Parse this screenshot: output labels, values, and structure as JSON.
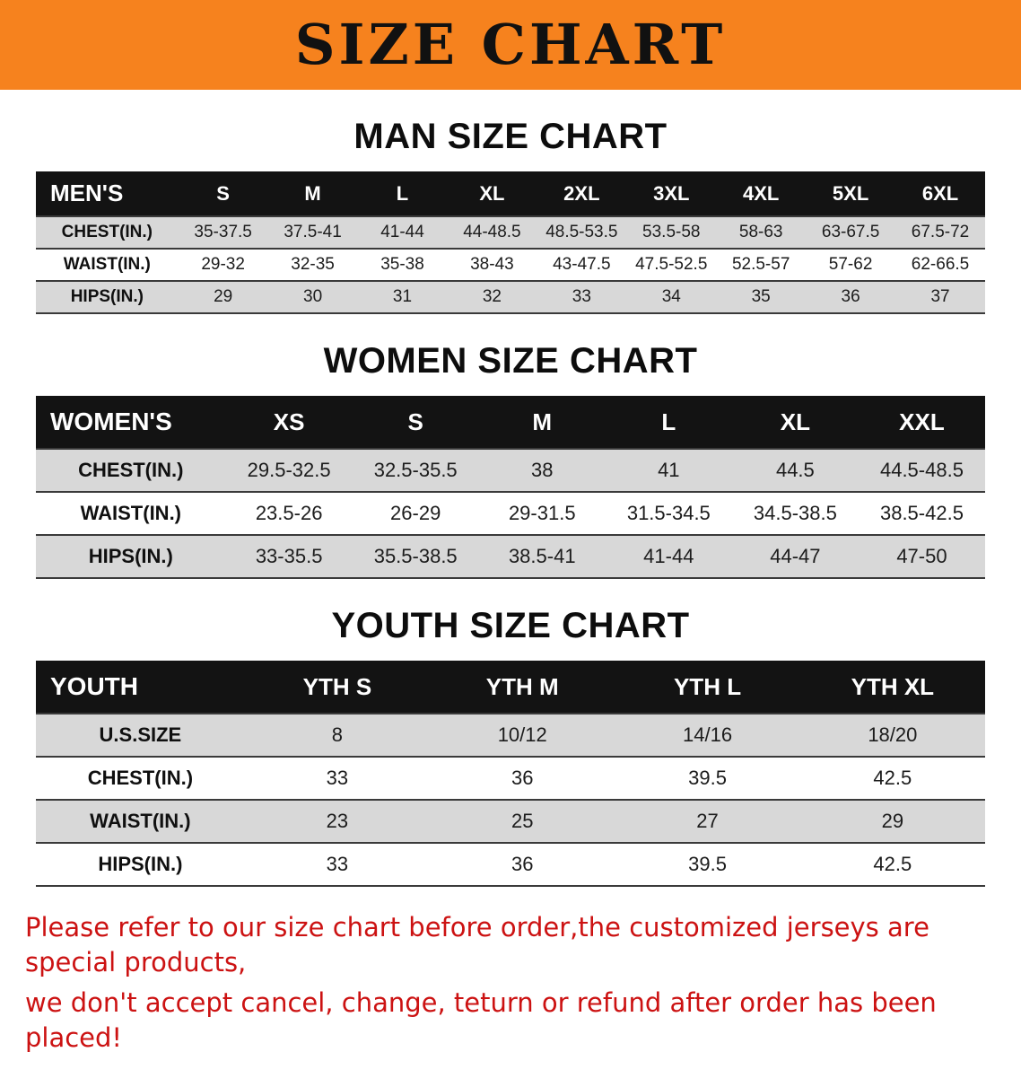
{
  "banner": {
    "title": "SIZE CHART",
    "background_color": "#f6821e"
  },
  "sections": [
    {
      "id": "men",
      "heading": "MAN SIZE CHART",
      "table": {
        "header": [
          "MEN'S",
          "S",
          "M",
          "L",
          "XL",
          "2XL",
          "3XL",
          "4XL",
          "5XL",
          "6XL"
        ],
        "rows": [
          [
            "CHEST(IN.)",
            "35-37.5",
            "37.5-41",
            "41-44",
            "44-48.5",
            "48.5-53.5",
            "53.5-58",
            "58-63",
            "63-67.5",
            "67.5-72"
          ],
          [
            "WAIST(IN.)",
            "29-32",
            "32-35",
            "35-38",
            "38-43",
            "43-47.5",
            "47.5-52.5",
            "52.5-57",
            "57-62",
            "62-66.5"
          ],
          [
            "HIPS(IN.)",
            "29",
            "30",
            "31",
            "32",
            "33",
            "34",
            "35",
            "36",
            "37"
          ]
        ]
      }
    },
    {
      "id": "women",
      "heading": "WOMEN SIZE CHART",
      "table": {
        "header": [
          "WOMEN'S",
          "XS",
          "S",
          "M",
          "L",
          "XL",
          "XXL"
        ],
        "rows": [
          [
            "CHEST(IN.)",
            "29.5-32.5",
            "32.5-35.5",
            "38",
            "41",
            "44.5",
            "44.5-48.5"
          ],
          [
            "WAIST(IN.)",
            "23.5-26",
            "26-29",
            "29-31.5",
            "31.5-34.5",
            "34.5-38.5",
            "38.5-42.5"
          ],
          [
            "HIPS(IN.)",
            "33-35.5",
            "35.5-38.5",
            "38.5-41",
            "41-44",
            "44-47",
            "47-50"
          ]
        ]
      }
    },
    {
      "id": "youth",
      "heading": "YOUTH SIZE CHART",
      "table": {
        "header": [
          "YOUTH",
          "YTH S",
          "YTH M",
          "YTH L",
          "YTH XL"
        ],
        "rows": [
          [
            "U.S.SIZE",
            "8",
            "10/12",
            "14/16",
            "18/20"
          ],
          [
            "CHEST(IN.)",
            "33",
            "36",
            "39.5",
            "42.5"
          ],
          [
            "WAIST(IN.)",
            "23",
            "25",
            "27",
            "29"
          ],
          [
            "HIPS(IN.)",
            "33",
            "36",
            "39.5",
            "42.5"
          ]
        ]
      }
    }
  ],
  "footer_note": {
    "line1": "Please refer to our size chart before order,the customized jerseys are special products,",
    "line2": "we don't accept cancel, change, teturn or refund after order has been placed!",
    "color": "#cc1212"
  }
}
